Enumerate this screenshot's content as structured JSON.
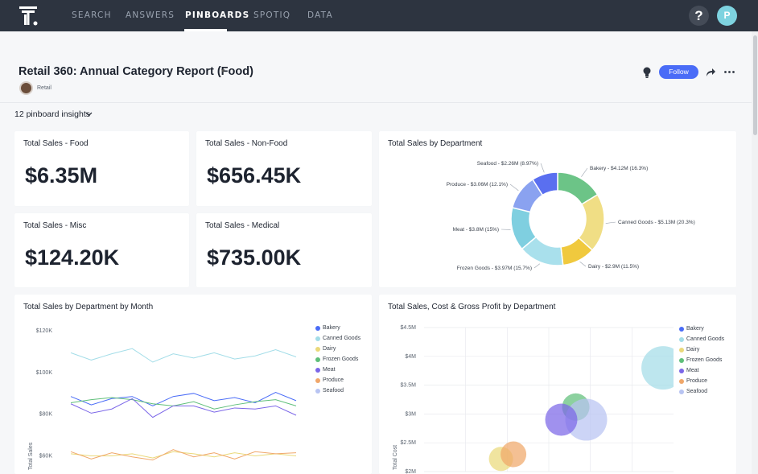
{
  "nav": {
    "items": [
      "SEARCH",
      "ANSWERS",
      "PINBOARDS",
      "SPOTIQ",
      "DATA"
    ],
    "active": "PINBOARDS",
    "help_label": "?",
    "user_initial": "P"
  },
  "pinboard": {
    "title": "Retail 360: Annual Category Report (Food)",
    "author": "Retail",
    "follow_label": "Follow",
    "insights_label": "12 pinboard insights"
  },
  "kpis": [
    {
      "title": "Total Sales - Food",
      "value": "$6.35M"
    },
    {
      "title": "Total Sales - Non-Food",
      "value": "$656.45K"
    },
    {
      "title": "Total Sales - Misc",
      "value": "$124.20K"
    },
    {
      "title": "Total Sales - Medical",
      "value": "$735.00K"
    }
  ],
  "colors": {
    "Bakery": "#4a6cf7",
    "Canned Goods": "#a3dde8",
    "Dairy": "#ead97a",
    "Frozen Goods": "#5fbf7a",
    "Meat": "#7b66e8",
    "Produce": "#f0a76a",
    "Seafood": "#b8c4f2"
  },
  "chart_data": [
    {
      "type": "pie",
      "title": "Total Sales by Department",
      "slices": [
        {
          "label": "Bakery - $4.12M (16.3%)",
          "value": 16.3,
          "color": "#6cc487"
        },
        {
          "label": "Canned Goods - $5.13M (20.3%)",
          "value": 20.3,
          "color": "#f0de85"
        },
        {
          "label": "Dairy - $2.9M (11.5%)",
          "value": 11.5,
          "color": "#f0c93e"
        },
        {
          "label": "Frozen Goods - $3.97M (15.7%)",
          "value": 15.7,
          "color": "#a9e0ec"
        },
        {
          "label": "Meat - $3.8M (15%)",
          "value": 15.0,
          "color": "#7fcfe0"
        },
        {
          "label": "Produce - $3.06M (12.1%)",
          "value": 12.1,
          "color": "#8aa2f0"
        },
        {
          "label": "Seafood - $2.26M (8.97%)",
          "value": 8.97,
          "color": "#5a6ff0"
        }
      ]
    },
    {
      "type": "line",
      "title": "Total Sales by Department by Month",
      "ylabel": "Total Sales",
      "yticks": [
        "$120K",
        "$100K",
        "$80K",
        "$60K"
      ],
      "ytick_values": [
        120000,
        100000,
        80000,
        60000
      ],
      "ylim": [
        54000,
        122000
      ],
      "legend": [
        "Bakery",
        "Canned Goods",
        "Dairy",
        "Frozen Goods",
        "Meat",
        "Produce",
        "Seafood"
      ],
      "series": [
        {
          "name": "Canned Goods",
          "values": [
            109500,
            106000,
            109000,
            111500,
            105000,
            109000,
            107000,
            109500,
            106500,
            108000,
            111000,
            107500
          ]
        },
        {
          "name": "Bakery",
          "values": [
            88500,
            84500,
            87500,
            88500,
            84000,
            88500,
            90000,
            86500,
            88000,
            85500,
            90500,
            86500
          ]
        },
        {
          "name": "Frozen Goods",
          "values": [
            85500,
            87000,
            88000,
            87000,
            85000,
            84000,
            86000,
            82500,
            84500,
            86000,
            87000,
            84000
          ]
        },
        {
          "name": "Meat",
          "values": [
            85000,
            80500,
            82500,
            87500,
            78500,
            84000,
            84000,
            81000,
            83000,
            82500,
            84000,
            79500
          ]
        },
        {
          "name": "Dairy",
          "values": [
            61000,
            60000,
            60000,
            61000,
            59000,
            62000,
            61000,
            59500,
            61500,
            60000,
            61000,
            60000
          ]
        },
        {
          "name": "Produce",
          "values": [
            62000,
            58500,
            61500,
            59500,
            58000,
            63000,
            59500,
            61500,
            58500,
            62000,
            61000,
            61500
          ]
        }
      ]
    },
    {
      "type": "scatter",
      "title": "Total Sales, Cost & Gross Profit by Department",
      "ylabel": "Total Cost",
      "yticks": [
        "$4.5M",
        "$4M",
        "$3.5M",
        "$3M",
        "$2.5M",
        "$2M"
      ],
      "ytick_values": [
        4.5,
        4.0,
        3.5,
        3.0,
        2.5,
        2.0
      ],
      "ylim": [
        2.0,
        4.5
      ],
      "xlim": [
        0,
        6
      ],
      "legend": [
        "Bakery",
        "Canned Goods",
        "Dairy",
        "Frozen Goods",
        "Meat",
        "Produce",
        "Seafood"
      ],
      "bubbles": [
        {
          "name": "Canned Goods",
          "x": 5.75,
          "y": 3.8,
          "r": 27
        },
        {
          "name": "Frozen Goods",
          "x": 3.65,
          "y": 3.12,
          "r": 17
        },
        {
          "name": "Seafood",
          "x": 3.9,
          "y": 2.9,
          "r": 26
        },
        {
          "name": "Meat",
          "x": 3.3,
          "y": 2.9,
          "r": 20
        },
        {
          "name": "Dairy",
          "x": 1.85,
          "y": 2.22,
          "r": 15
        },
        {
          "name": "Produce",
          "x": 2.15,
          "y": 2.3,
          "r": 16
        }
      ]
    }
  ]
}
